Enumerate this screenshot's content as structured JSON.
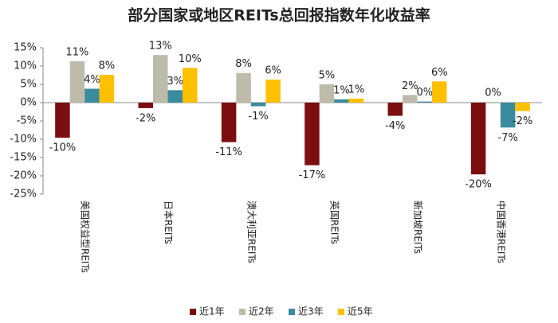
{
  "chart_data": {
    "type": "bar",
    "title": "部分国家或地区REITs总回报指数年化收益率",
    "categories": [
      "美国权益型REITs",
      "日本REITs",
      "澳大利亚REITs",
      "英国REITs",
      "新加坡REITs",
      "中国香港REITs"
    ],
    "series": [
      {
        "name": "近1年",
        "color": "#7b0f10",
        "values": [
          -9.6,
          -1.5,
          -10.8,
          -17.1,
          -3.6,
          -19.6
        ],
        "value_labels": [
          "-10%",
          "-2%",
          "-11%",
          "-17%",
          "-4%",
          "-20%"
        ]
      },
      {
        "name": "近2年",
        "color": "#bdbcab",
        "values": [
          11.3,
          13,
          8.1,
          5,
          2.1,
          0.2
        ],
        "value_labels": [
          "11%",
          "13%",
          "8%",
          "5%",
          "2%",
          "0%"
        ]
      },
      {
        "name": "近3年",
        "color": "#3b8b9f",
        "values": [
          3.8,
          3.4,
          -1.0,
          0.9,
          0.3,
          -6.8
        ],
        "value_labels": [
          "4%",
          "3%",
          "-1%",
          "1%",
          "0%",
          "-7%"
        ]
      },
      {
        "name": "近5年",
        "color": "#ffc000",
        "values": [
          7.6,
          9.5,
          6.3,
          1.1,
          5.8,
          -2.3
        ],
        "value_labels": [
          "8%",
          "10%",
          "6%",
          "1%",
          "6%",
          "-2%"
        ]
      }
    ],
    "ylim": [
      -25,
      15
    ],
    "yticks": [
      {
        "value": -25,
        "label": "-25%"
      },
      {
        "value": -20,
        "label": "-20%"
      },
      {
        "value": -15,
        "label": "-15%"
      },
      {
        "value": -10,
        "label": "-10%"
      },
      {
        "value": -5,
        "label": "-5%"
      },
      {
        "value": 0,
        "label": "0%"
      },
      {
        "value": 5,
        "label": "5%"
      },
      {
        "value": 10,
        "label": "10%"
      },
      {
        "value": 15,
        "label": "15%"
      }
    ],
    "legend": "bottom"
  }
}
